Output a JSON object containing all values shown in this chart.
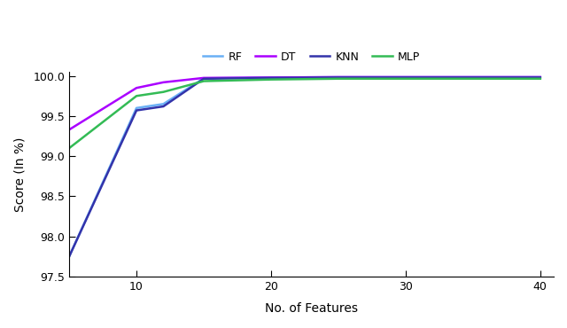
{
  "title": "",
  "xlabel": "No. of Features",
  "ylabel": "Score (In %)",
  "legend_labels": [
    "RF",
    "DT",
    "KNN",
    "MLP"
  ],
  "colors": [
    "#6ab0f5",
    "#aa00ff",
    "#3333aa",
    "#33bb55"
  ],
  "x": [
    5,
    10,
    12,
    15,
    20,
    25,
    30,
    35,
    40
  ],
  "RF": [
    97.75,
    99.6,
    99.65,
    99.97,
    99.98,
    99.985,
    99.985,
    99.985,
    99.985
  ],
  "DT": [
    99.33,
    99.85,
    99.92,
    99.975,
    99.98,
    99.985,
    99.985,
    99.985,
    99.985
  ],
  "KNN": [
    97.75,
    99.57,
    99.62,
    99.965,
    99.975,
    99.98,
    99.98,
    99.98,
    99.98
  ],
  "MLP": [
    99.1,
    99.75,
    99.8,
    99.935,
    99.955,
    99.965,
    99.965,
    99.965,
    99.965
  ],
  "ylim": [
    97.5,
    100.05
  ],
  "xlim": [
    5,
    41
  ],
  "yticks": [
    97.5,
    98.0,
    98.5,
    99.0,
    99.5,
    100.0
  ],
  "xticks": [
    10,
    20,
    30,
    40
  ],
  "linewidth": 1.8
}
